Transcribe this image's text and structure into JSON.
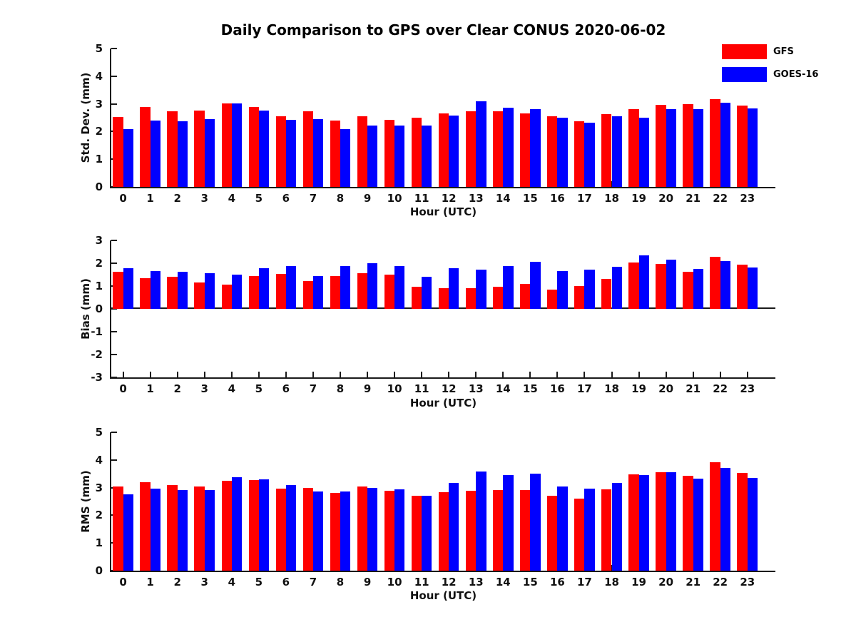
{
  "title": "Daily Comparison to GPS over Clear CONUS 2020-06-02",
  "legend": {
    "items": [
      {
        "label": "GFS",
        "color": "#ff0000"
      },
      {
        "label": "GOES-16",
        "color": "#0000ff"
      }
    ]
  },
  "colors": {
    "gfs": "#ff0000",
    "goes16": "#0000ff",
    "axis": "#1a1a1a"
  },
  "chart_data": [
    {
      "type": "bar",
      "title": "",
      "ylabel": "Std. Dev. (mm)",
      "xlabel": "Hour (UTC)",
      "ylim": [
        0,
        5
      ],
      "yticks": [
        0,
        1,
        2,
        3,
        4,
        5
      ],
      "grid": false,
      "legend_position": "upper-right-outside",
      "categories": [
        "0",
        "1",
        "2",
        "3",
        "4",
        "5",
        "6",
        "7",
        "8",
        "9",
        "10",
        "11",
        "12",
        "13",
        "14",
        "15",
        "16",
        "17",
        "18",
        "19",
        "20",
        "21",
        "22",
        "23"
      ],
      "series": [
        {
          "name": "GFS",
          "color": "#ff0000",
          "values": [
            2.53,
            2.88,
            2.74,
            2.77,
            3.01,
            2.89,
            2.54,
            2.73,
            2.4,
            2.55,
            2.43,
            2.5,
            2.66,
            2.73,
            2.73,
            2.66,
            2.54,
            2.38,
            2.64,
            2.8,
            2.97,
            3.0,
            3.18,
            2.95
          ]
        },
        {
          "name": "GOES-16",
          "color": "#0000ff",
          "values": [
            2.1,
            2.39,
            2.37,
            2.44,
            3.02,
            2.77,
            2.43,
            2.45,
            2.1,
            2.21,
            2.22,
            2.21,
            2.59,
            3.1,
            2.86,
            2.8,
            2.51,
            2.33,
            2.54,
            2.5,
            2.8,
            2.8,
            3.05,
            2.84
          ]
        }
      ]
    },
    {
      "type": "bar",
      "title": "",
      "ylabel": "Bias (mm)",
      "xlabel": "Hour (UTC)",
      "ylim": [
        -3,
        3
      ],
      "yticks": [
        -3,
        -2,
        -1,
        0,
        1,
        2,
        3
      ],
      "grid": false,
      "categories": [
        "0",
        "1",
        "2",
        "3",
        "4",
        "5",
        "6",
        "7",
        "8",
        "9",
        "10",
        "11",
        "12",
        "13",
        "14",
        "15",
        "16",
        "17",
        "18",
        "19",
        "20",
        "21",
        "22",
        "23"
      ],
      "series": [
        {
          "name": "GFS",
          "color": "#ff0000",
          "values": [
            1.62,
            1.33,
            1.4,
            1.15,
            1.07,
            1.45,
            1.53,
            1.23,
            1.43,
            1.55,
            1.5,
            0.97,
            0.91,
            0.91,
            0.97,
            1.08,
            0.85,
            1.0,
            1.3,
            2.02,
            1.97,
            1.63,
            2.27,
            1.93
          ]
        },
        {
          "name": "GOES-16",
          "color": "#0000ff",
          "values": [
            1.78,
            1.67,
            1.61,
            1.57,
            1.51,
            1.77,
            1.88,
            1.45,
            1.89,
            2.0,
            1.88,
            1.42,
            1.77,
            1.72,
            1.89,
            2.05,
            1.66,
            1.73,
            1.83,
            2.35,
            2.17,
            1.76,
            2.1,
            1.8
          ]
        }
      ]
    },
    {
      "type": "bar",
      "title": "",
      "ylabel": "RMS (mm)",
      "xlabel": "Hour (UTC)",
      "ylim": [
        0,
        5
      ],
      "yticks": [
        0,
        1,
        2,
        3,
        4,
        5
      ],
      "grid": false,
      "categories": [
        "0",
        "1",
        "2",
        "3",
        "4",
        "5",
        "6",
        "7",
        "8",
        "9",
        "10",
        "11",
        "12",
        "13",
        "14",
        "15",
        "16",
        "17",
        "18",
        "19",
        "20",
        "21",
        "22",
        "23"
      ],
      "series": [
        {
          "name": "GFS",
          "color": "#ff0000",
          "values": [
            3.05,
            3.2,
            3.1,
            3.03,
            3.24,
            3.28,
            2.97,
            3.0,
            2.82,
            3.03,
            2.89,
            2.7,
            2.84,
            2.88,
            2.91,
            2.9,
            2.71,
            2.61,
            2.95,
            3.49,
            3.56,
            3.43,
            3.93,
            3.52
          ]
        },
        {
          "name": "GOES-16",
          "color": "#0000ff",
          "values": [
            2.77,
            2.97,
            2.9,
            2.92,
            3.38,
            3.31,
            3.1,
            2.87,
            2.87,
            3.0,
            2.94,
            2.7,
            3.17,
            3.57,
            3.46,
            3.5,
            3.04,
            2.96,
            3.16,
            3.45,
            3.56,
            3.33,
            3.72,
            3.35
          ]
        }
      ]
    }
  ]
}
